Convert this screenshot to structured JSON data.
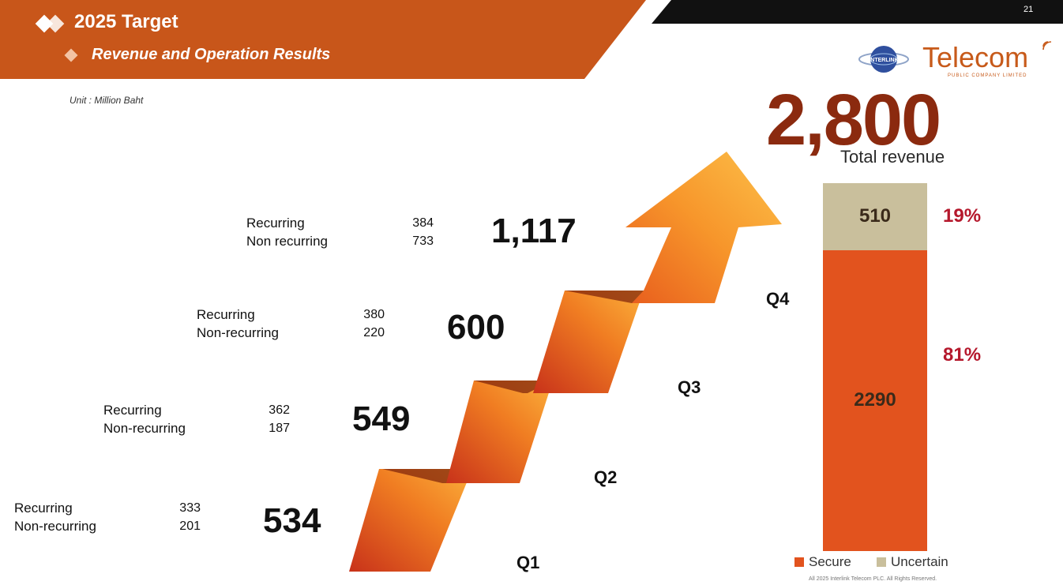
{
  "header": {
    "title": "2025 Target",
    "subtitle": "Revenue and Operation Results",
    "page_number": "21",
    "unit": "Unit : Million Baht"
  },
  "logo": {
    "brand": "Telecom",
    "tagline": "PUBLIC COMPANY LIMITED",
    "globe_text": "INTERLINK"
  },
  "total": {
    "value": "2,800",
    "label": "Total revenue"
  },
  "quarters": [
    {
      "name": "Q1",
      "total": "534",
      "rec_label": "Recurring",
      "rec_value": "333",
      "nonrec_label": "Non-recurring",
      "nonrec_value": "201"
    },
    {
      "name": "Q2",
      "total": "549",
      "rec_label": "Recurring",
      "rec_value": "362",
      "nonrec_label": "Non-recurring",
      "nonrec_value": "187"
    },
    {
      "name": "Q3",
      "total": "600",
      "rec_label": "Recurring",
      "rec_value": "380",
      "nonrec_label": "Non-recurring",
      "nonrec_value": "220"
    },
    {
      "name": "Q4",
      "total": "1,117",
      "rec_label": "Recurring",
      "rec_value": "384",
      "nonrec_label": "Non recurring",
      "nonrec_value": "733"
    }
  ],
  "chart_data": {
    "type": "bar",
    "stacked": true,
    "series": [
      {
        "name": "Secure",
        "value": 2290,
        "label": "2290",
        "percent": "81%",
        "color": "#e2531e"
      },
      {
        "name": "Uncertain",
        "value": 510,
        "label": "510",
        "percent": "19%",
        "color": "#c9bf9c"
      }
    ],
    "total": 2800,
    "legend": [
      "Secure",
      "Uncertain"
    ],
    "legend_position": "bottom"
  },
  "colors": {
    "banner": "#c8561a",
    "accent": "#b5182c",
    "total": "#8b2a0f"
  },
  "footer": "All 2025 Interlink Telecom PLC. All Rights Reserved."
}
